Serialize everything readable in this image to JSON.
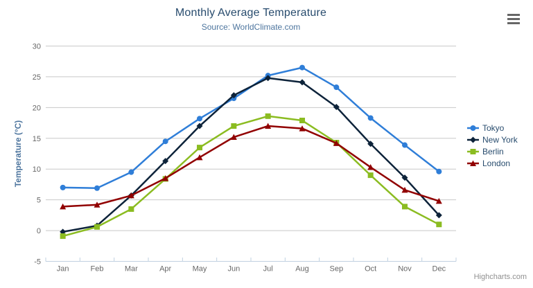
{
  "header": {
    "title": "Monthly Average Temperature",
    "subtitle": "Source: WorldClimate.com"
  },
  "menu_icon": "hamburger-export-menu",
  "credits": {
    "label": "Highcharts.com"
  },
  "colors": {
    "title": "#274b6d",
    "subtitle": "#4d759e",
    "axis_title": "#4d759e",
    "tick_label": "#666666",
    "grid_line": "#c8c8c8",
    "axis_line": "#c0d0e0",
    "legend_text": "#274b6d",
    "credits_text": "#909090",
    "menu_icon": "#666666"
  },
  "chart_data": {
    "type": "line",
    "title": "Monthly Average Temperature",
    "subtitle": "Source: WorldClimate.com",
    "xlabel": "",
    "ylabel": "Temperature (°C)",
    "ylim": [
      -5,
      30
    ],
    "ytick_step": 5,
    "grid": true,
    "legend_position": "right",
    "categories": [
      "Jan",
      "Feb",
      "Mar",
      "Apr",
      "May",
      "Jun",
      "Jul",
      "Aug",
      "Sep",
      "Oct",
      "Nov",
      "Dec"
    ],
    "series": [
      {
        "name": "Tokyo",
        "color": "#2f7ed8",
        "marker": "circle",
        "values": [
          7.0,
          6.9,
          9.5,
          14.5,
          18.2,
          21.5,
          25.2,
          26.5,
          23.3,
          18.3,
          13.9,
          9.6
        ]
      },
      {
        "name": "New York",
        "color": "#0d233a",
        "marker": "diamond",
        "values": [
          -0.2,
          0.8,
          5.7,
          11.3,
          17.0,
          22.0,
          24.8,
          24.1,
          20.1,
          14.1,
          8.6,
          2.5
        ]
      },
      {
        "name": "Berlin",
        "color": "#8bbc21",
        "marker": "square",
        "values": [
          -0.9,
          0.6,
          3.5,
          8.4,
          13.5,
          17.0,
          18.6,
          17.9,
          14.3,
          9.0,
          3.9,
          1.0
        ]
      },
      {
        "name": "London",
        "color": "#910000",
        "marker": "triangle",
        "values": [
          3.9,
          4.2,
          5.7,
          8.5,
          11.9,
          15.2,
          17.0,
          16.6,
          14.2,
          10.3,
          6.6,
          4.8
        ]
      }
    ]
  }
}
